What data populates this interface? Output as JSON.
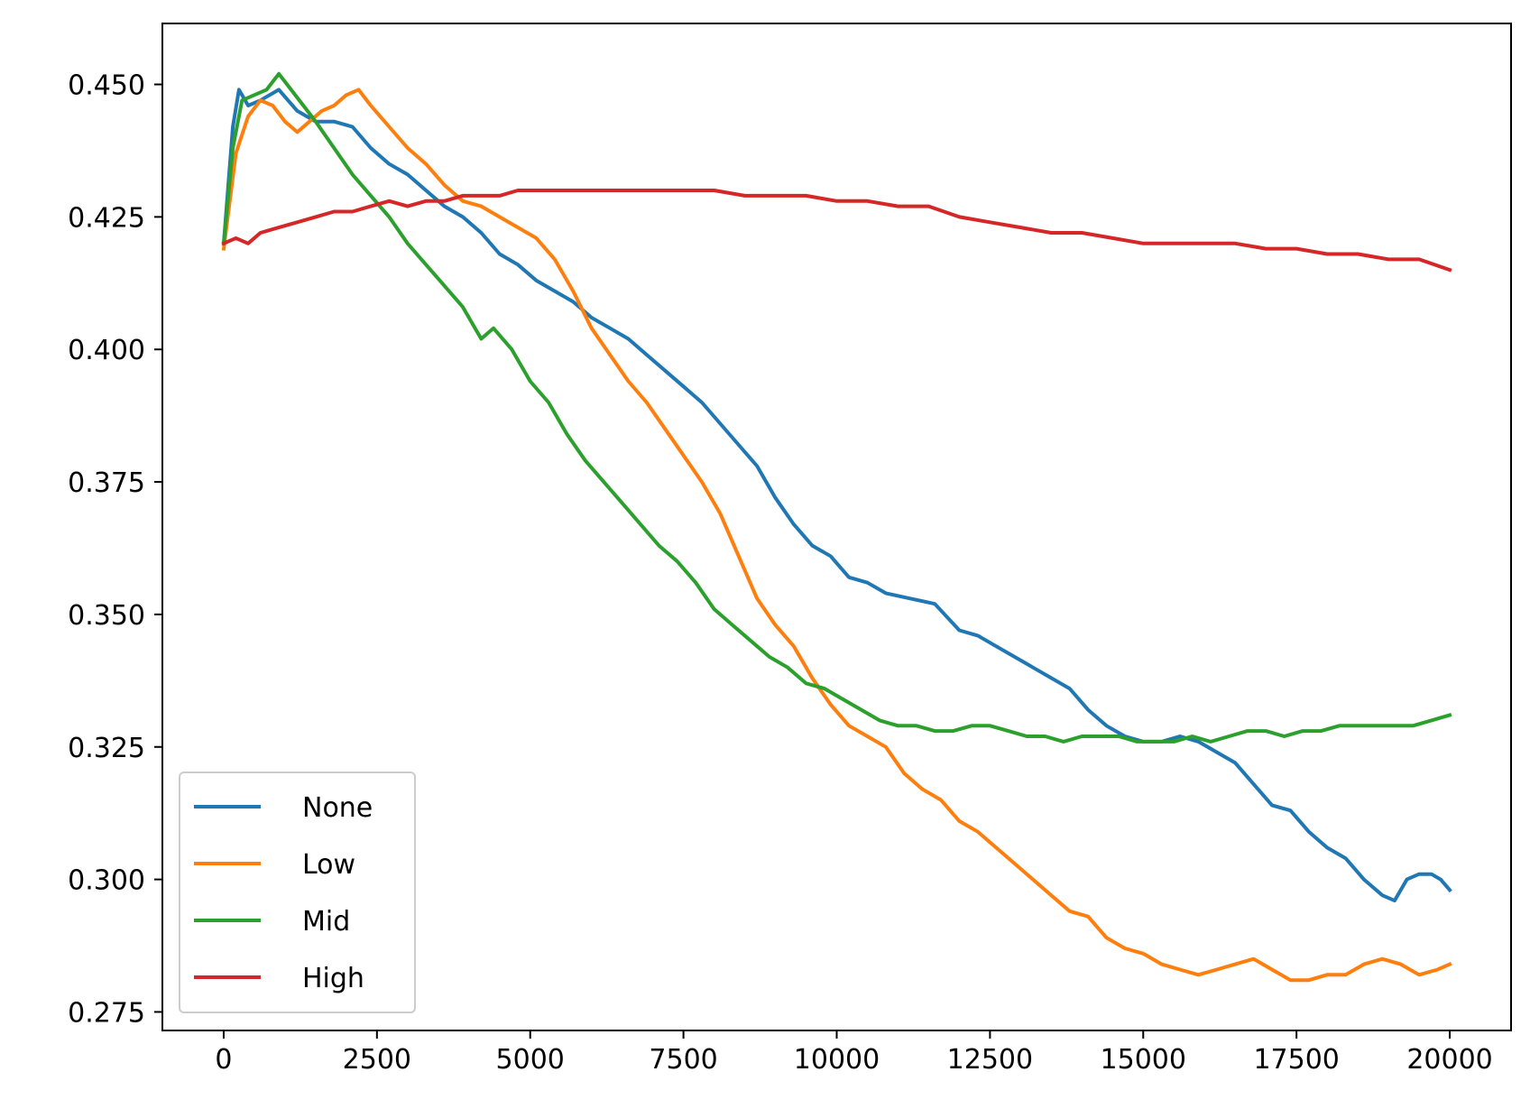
{
  "chart_data": {
    "type": "line",
    "title": "",
    "xlabel": "",
    "ylabel": "",
    "xlim": [
      -1000,
      21000
    ],
    "ylim": [
      0.2715,
      0.4615
    ],
    "x_ticks": [
      0,
      2500,
      5000,
      7500,
      10000,
      12500,
      15000,
      17500,
      20000
    ],
    "x_tick_labels": [
      "0",
      "2500",
      "5000",
      "7500",
      "10000",
      "12500",
      "15000",
      "17500",
      "20000"
    ],
    "y_ticks": [
      0.275,
      0.3,
      0.325,
      0.35,
      0.375,
      0.4,
      0.425,
      0.45
    ],
    "y_tick_labels": [
      "0.275",
      "0.300",
      "0.325",
      "0.350",
      "0.375",
      "0.400",
      "0.425",
      "0.450"
    ],
    "grid": false,
    "legend_position": "lower-left",
    "series": [
      {
        "name": "None",
        "color": "#1f77b4",
        "points": [
          [
            0,
            0.42
          ],
          [
            150,
            0.442
          ],
          [
            250,
            0.449
          ],
          [
            400,
            0.446
          ],
          [
            600,
            0.447
          ],
          [
            900,
            0.449
          ],
          [
            1200,
            0.445
          ],
          [
            1500,
            0.443
          ],
          [
            1800,
            0.443
          ],
          [
            2100,
            0.442
          ],
          [
            2400,
            0.438
          ],
          [
            2700,
            0.435
          ],
          [
            3000,
            0.433
          ],
          [
            3300,
            0.43
          ],
          [
            3600,
            0.427
          ],
          [
            3900,
            0.425
          ],
          [
            4200,
            0.422
          ],
          [
            4500,
            0.418
          ],
          [
            4800,
            0.416
          ],
          [
            5100,
            0.413
          ],
          [
            5400,
            0.411
          ],
          [
            5700,
            0.409
          ],
          [
            6000,
            0.406
          ],
          [
            6300,
            0.404
          ],
          [
            6600,
            0.402
          ],
          [
            6900,
            0.399
          ],
          [
            7200,
            0.396
          ],
          [
            7500,
            0.393
          ],
          [
            7800,
            0.39
          ],
          [
            8100,
            0.386
          ],
          [
            8400,
            0.382
          ],
          [
            8700,
            0.378
          ],
          [
            9000,
            0.372
          ],
          [
            9300,
            0.367
          ],
          [
            9600,
            0.363
          ],
          [
            9900,
            0.361
          ],
          [
            10200,
            0.357
          ],
          [
            10500,
            0.356
          ],
          [
            10800,
            0.354
          ],
          [
            11200,
            0.353
          ],
          [
            11600,
            0.352
          ],
          [
            12000,
            0.347
          ],
          [
            12300,
            0.346
          ],
          [
            12600,
            0.344
          ],
          [
            12900,
            0.342
          ],
          [
            13200,
            0.34
          ],
          [
            13500,
            0.338
          ],
          [
            13800,
            0.336
          ],
          [
            14100,
            0.332
          ],
          [
            14400,
            0.329
          ],
          [
            14700,
            0.327
          ],
          [
            15000,
            0.326
          ],
          [
            15300,
            0.326
          ],
          [
            15600,
            0.327
          ],
          [
            15900,
            0.326
          ],
          [
            16200,
            0.324
          ],
          [
            16500,
            0.322
          ],
          [
            16800,
            0.318
          ],
          [
            17100,
            0.314
          ],
          [
            17400,
            0.313
          ],
          [
            17700,
            0.309
          ],
          [
            18000,
            0.306
          ],
          [
            18300,
            0.304
          ],
          [
            18600,
            0.3
          ],
          [
            18900,
            0.297
          ],
          [
            19100,
            0.296
          ],
          [
            19300,
            0.3
          ],
          [
            19500,
            0.301
          ],
          [
            19700,
            0.301
          ],
          [
            19850,
            0.3
          ],
          [
            20000,
            0.298
          ]
        ]
      },
      {
        "name": "Low",
        "color": "#ff7f0e",
        "points": [
          [
            0,
            0.419
          ],
          [
            200,
            0.437
          ],
          [
            400,
            0.444
          ],
          [
            600,
            0.447
          ],
          [
            800,
            0.446
          ],
          [
            1000,
            0.443
          ],
          [
            1200,
            0.441
          ],
          [
            1400,
            0.443
          ],
          [
            1600,
            0.445
          ],
          [
            1800,
            0.446
          ],
          [
            2000,
            0.448
          ],
          [
            2200,
            0.449
          ],
          [
            2400,
            0.446
          ],
          [
            2700,
            0.442
          ],
          [
            3000,
            0.438
          ],
          [
            3300,
            0.435
          ],
          [
            3600,
            0.431
          ],
          [
            3900,
            0.428
          ],
          [
            4200,
            0.427
          ],
          [
            4500,
            0.425
          ],
          [
            4800,
            0.423
          ],
          [
            5100,
            0.421
          ],
          [
            5400,
            0.417
          ],
          [
            5700,
            0.411
          ],
          [
            6000,
            0.404
          ],
          [
            6300,
            0.399
          ],
          [
            6600,
            0.394
          ],
          [
            6900,
            0.39
          ],
          [
            7200,
            0.385
          ],
          [
            7500,
            0.38
          ],
          [
            7800,
            0.375
          ],
          [
            8100,
            0.369
          ],
          [
            8400,
            0.361
          ],
          [
            8700,
            0.353
          ],
          [
            9000,
            0.348
          ],
          [
            9300,
            0.344
          ],
          [
            9600,
            0.338
          ],
          [
            9900,
            0.333
          ],
          [
            10200,
            0.329
          ],
          [
            10500,
            0.327
          ],
          [
            10800,
            0.325
          ],
          [
            11100,
            0.32
          ],
          [
            11400,
            0.317
          ],
          [
            11700,
            0.315
          ],
          [
            12000,
            0.311
          ],
          [
            12300,
            0.309
          ],
          [
            12600,
            0.306
          ],
          [
            12900,
            0.303
          ],
          [
            13200,
            0.3
          ],
          [
            13500,
            0.297
          ],
          [
            13800,
            0.294
          ],
          [
            14100,
            0.293
          ],
          [
            14400,
            0.289
          ],
          [
            14700,
            0.287
          ],
          [
            15000,
            0.286
          ],
          [
            15300,
            0.284
          ],
          [
            15600,
            0.283
          ],
          [
            15900,
            0.282
          ],
          [
            16200,
            0.283
          ],
          [
            16500,
            0.284
          ],
          [
            16800,
            0.285
          ],
          [
            17100,
            0.283
          ],
          [
            17400,
            0.281
          ],
          [
            17700,
            0.281
          ],
          [
            18000,
            0.282
          ],
          [
            18300,
            0.282
          ],
          [
            18600,
            0.284
          ],
          [
            18900,
            0.285
          ],
          [
            19200,
            0.284
          ],
          [
            19500,
            0.282
          ],
          [
            19800,
            0.283
          ],
          [
            20000,
            0.284
          ]
        ]
      },
      {
        "name": "Mid",
        "color": "#2ca02c",
        "points": [
          [
            0,
            0.42
          ],
          [
            150,
            0.438
          ],
          [
            300,
            0.447
          ],
          [
            500,
            0.448
          ],
          [
            700,
            0.449
          ],
          [
            900,
            0.452
          ],
          [
            1100,
            0.449
          ],
          [
            1300,
            0.446
          ],
          [
            1500,
            0.443
          ],
          [
            1800,
            0.438
          ],
          [
            2100,
            0.433
          ],
          [
            2400,
            0.429
          ],
          [
            2700,
            0.425
          ],
          [
            3000,
            0.42
          ],
          [
            3300,
            0.416
          ],
          [
            3600,
            0.412
          ],
          [
            3900,
            0.408
          ],
          [
            4200,
            0.402
          ],
          [
            4400,
            0.404
          ],
          [
            4700,
            0.4
          ],
          [
            5000,
            0.394
          ],
          [
            5300,
            0.39
          ],
          [
            5600,
            0.384
          ],
          [
            5900,
            0.379
          ],
          [
            6200,
            0.375
          ],
          [
            6500,
            0.371
          ],
          [
            6800,
            0.367
          ],
          [
            7100,
            0.363
          ],
          [
            7400,
            0.36
          ],
          [
            7700,
            0.356
          ],
          [
            8000,
            0.351
          ],
          [
            8300,
            0.348
          ],
          [
            8600,
            0.345
          ],
          [
            8900,
            0.342
          ],
          [
            9200,
            0.34
          ],
          [
            9500,
            0.337
          ],
          [
            9800,
            0.336
          ],
          [
            10100,
            0.334
          ],
          [
            10400,
            0.332
          ],
          [
            10700,
            0.33
          ],
          [
            11000,
            0.329
          ],
          [
            11300,
            0.329
          ],
          [
            11600,
            0.328
          ],
          [
            11900,
            0.328
          ],
          [
            12200,
            0.329
          ],
          [
            12500,
            0.329
          ],
          [
            12800,
            0.328
          ],
          [
            13100,
            0.327
          ],
          [
            13400,
            0.327
          ],
          [
            13700,
            0.326
          ],
          [
            14000,
            0.327
          ],
          [
            14300,
            0.327
          ],
          [
            14600,
            0.327
          ],
          [
            14900,
            0.326
          ],
          [
            15200,
            0.326
          ],
          [
            15500,
            0.326
          ],
          [
            15800,
            0.327
          ],
          [
            16100,
            0.326
          ],
          [
            16400,
            0.327
          ],
          [
            16700,
            0.328
          ],
          [
            17000,
            0.328
          ],
          [
            17300,
            0.327
          ],
          [
            17600,
            0.328
          ],
          [
            17900,
            0.328
          ],
          [
            18200,
            0.329
          ],
          [
            18500,
            0.329
          ],
          [
            18800,
            0.329
          ],
          [
            19100,
            0.329
          ],
          [
            19400,
            0.329
          ],
          [
            19700,
            0.33
          ],
          [
            20000,
            0.331
          ]
        ]
      },
      {
        "name": "High",
        "color": "#d62728",
        "points": [
          [
            0,
            0.42
          ],
          [
            200,
            0.421
          ],
          [
            400,
            0.42
          ],
          [
            600,
            0.422
          ],
          [
            900,
            0.423
          ],
          [
            1200,
            0.424
          ],
          [
            1500,
            0.425
          ],
          [
            1800,
            0.426
          ],
          [
            2100,
            0.426
          ],
          [
            2400,
            0.427
          ],
          [
            2700,
            0.428
          ],
          [
            3000,
            0.427
          ],
          [
            3300,
            0.428
          ],
          [
            3600,
            0.428
          ],
          [
            3900,
            0.429
          ],
          [
            4200,
            0.429
          ],
          [
            4500,
            0.429
          ],
          [
            4800,
            0.43
          ],
          [
            5100,
            0.43
          ],
          [
            5500,
            0.43
          ],
          [
            6000,
            0.43
          ],
          [
            6500,
            0.43
          ],
          [
            7000,
            0.43
          ],
          [
            7500,
            0.43
          ],
          [
            8000,
            0.43
          ],
          [
            8500,
            0.429
          ],
          [
            9000,
            0.429
          ],
          [
            9500,
            0.429
          ],
          [
            10000,
            0.428
          ],
          [
            10500,
            0.428
          ],
          [
            11000,
            0.427
          ],
          [
            11500,
            0.427
          ],
          [
            12000,
            0.425
          ],
          [
            12500,
            0.424
          ],
          [
            13000,
            0.423
          ],
          [
            13500,
            0.422
          ],
          [
            14000,
            0.422
          ],
          [
            14500,
            0.421
          ],
          [
            15000,
            0.42
          ],
          [
            15500,
            0.42
          ],
          [
            16000,
            0.42
          ],
          [
            16500,
            0.42
          ],
          [
            17000,
            0.419
          ],
          [
            17500,
            0.419
          ],
          [
            18000,
            0.418
          ],
          [
            18500,
            0.418
          ],
          [
            19000,
            0.417
          ],
          [
            19500,
            0.417
          ],
          [
            20000,
            0.415
          ]
        ]
      }
    ]
  }
}
